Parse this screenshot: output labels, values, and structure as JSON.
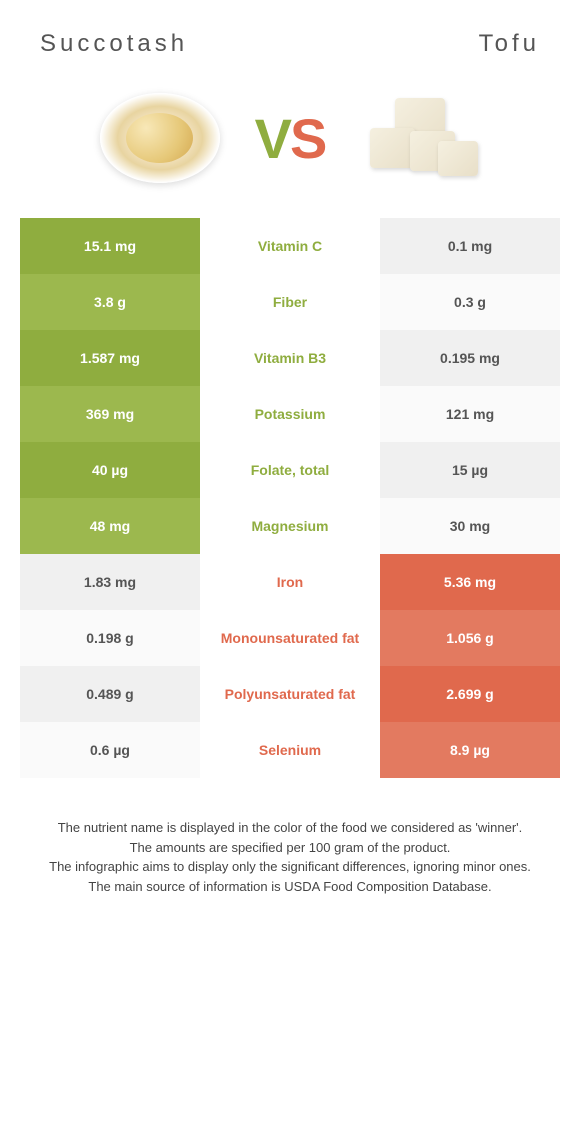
{
  "foods": {
    "left": "Succotash",
    "right": "Tofu"
  },
  "vs": {
    "v": "V",
    "s": "S"
  },
  "colors": {
    "left_win_dark": "#8fad3f",
    "left_win_light": "#9cb84e",
    "right_win_dark": "#e0694d",
    "right_win_light": "#e37a60",
    "lose_dark": "#f0f0f0",
    "lose_light": "#fafafa",
    "text_green": "#8fad3f",
    "text_orange": "#e0694d"
  },
  "rows": [
    {
      "nutrient": "Vitamin C",
      "left": "15.1 mg",
      "right": "0.1 mg",
      "winner": "left"
    },
    {
      "nutrient": "Fiber",
      "left": "3.8 g",
      "right": "0.3 g",
      "winner": "left"
    },
    {
      "nutrient": "Vitamin B3",
      "left": "1.587 mg",
      "right": "0.195 mg",
      "winner": "left"
    },
    {
      "nutrient": "Potassium",
      "left": "369 mg",
      "right": "121 mg",
      "winner": "left"
    },
    {
      "nutrient": "Folate, total",
      "left": "40 µg",
      "right": "15 µg",
      "winner": "left"
    },
    {
      "nutrient": "Magnesium",
      "left": "48 mg",
      "right": "30 mg",
      "winner": "left"
    },
    {
      "nutrient": "Iron",
      "left": "1.83 mg",
      "right": "5.36 mg",
      "winner": "right"
    },
    {
      "nutrient": "Monounsaturated fat",
      "left": "0.198 g",
      "right": "1.056 g",
      "winner": "right"
    },
    {
      "nutrient": "Polyunsaturated fat",
      "left": "0.489 g",
      "right": "2.699 g",
      "winner": "right"
    },
    {
      "nutrient": "Selenium",
      "left": "0.6 µg",
      "right": "8.9 µg",
      "winner": "right"
    }
  ],
  "footer": {
    "l1": "The nutrient name is displayed in the color of the food we considered as 'winner'.",
    "l2": "The amounts are specified per 100 gram of the product.",
    "l3": "The infographic aims to display only the significant differences, ignoring minor ones.",
    "l4": "The main source of information is USDA Food Composition Database."
  }
}
